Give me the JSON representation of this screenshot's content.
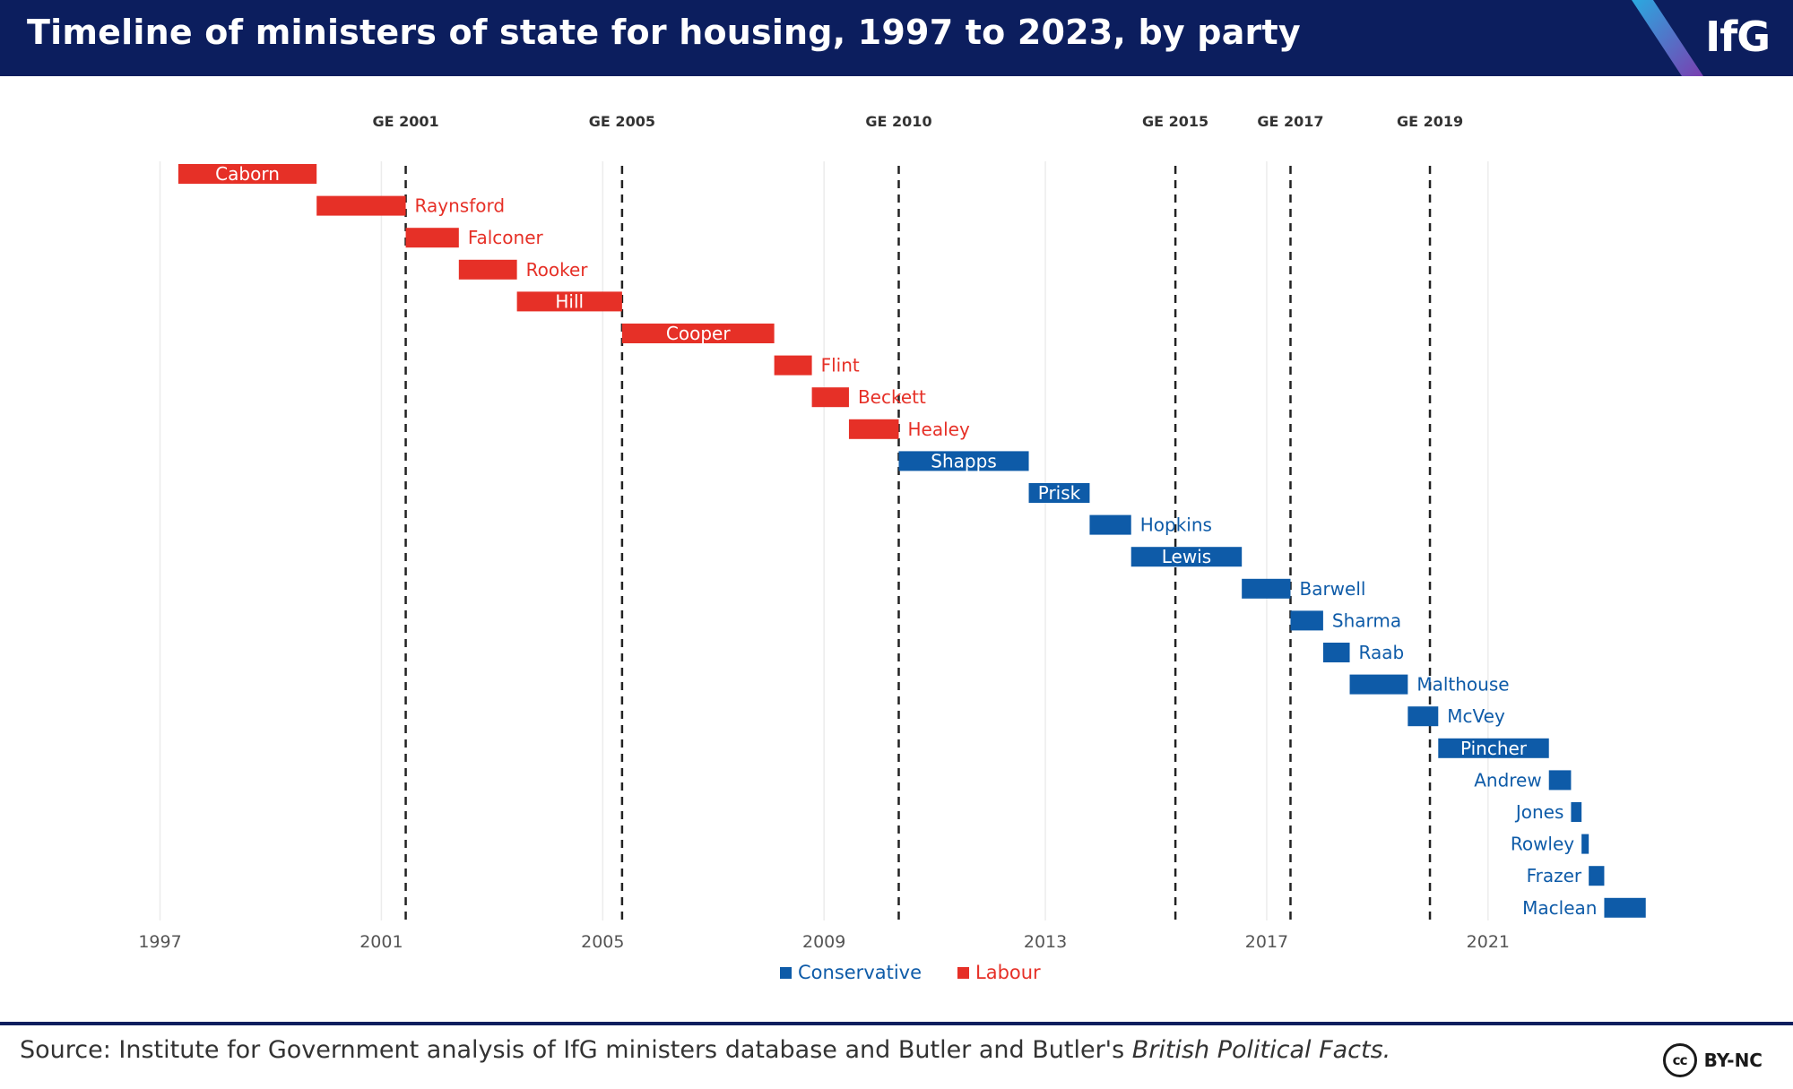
{
  "header": {
    "title": "Timeline of ministers of state for housing, 1997 to 2023, by party",
    "logo": "IfG"
  },
  "footer": {
    "source_prefix": "Source: Institute for Government analysis of IfG ministers database and Butler and Butler's ",
    "source_italic": "British Political Facts.",
    "license": "BY-NC",
    "license_icon": "cc-icon"
  },
  "colors": {
    "header_bg": "#0c1e5e",
    "labour": "#e63027",
    "conservative": "#0e5ba8"
  },
  "chart_data": {
    "type": "gantt",
    "title": "Timeline of ministers of state for housing, 1997 to 2023, by party",
    "x_range": [
      1996.7,
      2024.0
    ],
    "x_ticks": [
      "1997",
      "2001",
      "2005",
      "2009",
      "2013",
      "2017",
      "2021"
    ],
    "grid": "vertical, years 1997–2021 every 4 years",
    "legend_position": "bottom-center",
    "legend": [
      {
        "label": "Conservative",
        "party": "conservative"
      },
      {
        "label": "Labour",
        "party": "labour"
      }
    ],
    "elections": [
      {
        "label": "GE 2001",
        "date": 2001.44
      },
      {
        "label": "GE 2005",
        "date": 2005.35
      },
      {
        "label": "GE 2010",
        "date": 2010.35
      },
      {
        "label": "GE 2015",
        "date": 2015.35
      },
      {
        "label": "GE 2017",
        "date": 2017.43
      },
      {
        "label": "GE 2019",
        "date": 2019.95
      }
    ],
    "ministers": [
      {
        "name": "Caborn",
        "party": "labour",
        "start": 1997.33,
        "end": 1999.83,
        "label": "inside"
      },
      {
        "name": "Raynsford",
        "party": "labour",
        "start": 1999.83,
        "end": 2001.44,
        "label": "right"
      },
      {
        "name": "Falconer",
        "party": "labour",
        "start": 2001.44,
        "end": 2002.4,
        "label": "right"
      },
      {
        "name": "Rooker",
        "party": "labour",
        "start": 2002.4,
        "end": 2003.45,
        "label": "right"
      },
      {
        "name": "Hill",
        "party": "labour",
        "start": 2003.45,
        "end": 2005.35,
        "label": "inside"
      },
      {
        "name": "Cooper",
        "party": "labour",
        "start": 2005.35,
        "end": 2008.1,
        "label": "inside"
      },
      {
        "name": "Flint",
        "party": "labour",
        "start": 2008.1,
        "end": 2008.78,
        "label": "right"
      },
      {
        "name": "Beckett",
        "party": "labour",
        "start": 2008.78,
        "end": 2009.45,
        "label": "right"
      },
      {
        "name": "Healey",
        "party": "labour",
        "start": 2009.45,
        "end": 2010.35,
        "label": "right"
      },
      {
        "name": "Shapps",
        "party": "conservative",
        "start": 2010.35,
        "end": 2012.7,
        "label": "inside"
      },
      {
        "name": "Prisk",
        "party": "conservative",
        "start": 2012.7,
        "end": 2013.8,
        "label": "inside"
      },
      {
        "name": "Hopkins",
        "party": "conservative",
        "start": 2013.8,
        "end": 2014.55,
        "label": "right"
      },
      {
        "name": "Lewis",
        "party": "conservative",
        "start": 2014.55,
        "end": 2016.55,
        "label": "inside"
      },
      {
        "name": "Barwell",
        "party": "conservative",
        "start": 2016.55,
        "end": 2017.43,
        "label": "right"
      },
      {
        "name": "Sharma",
        "party": "conservative",
        "start": 2017.43,
        "end": 2018.02,
        "label": "right"
      },
      {
        "name": "Raab",
        "party": "conservative",
        "start": 2018.02,
        "end": 2018.5,
        "label": "right"
      },
      {
        "name": "Malthouse",
        "party": "conservative",
        "start": 2018.5,
        "end": 2019.55,
        "label": "right"
      },
      {
        "name": "McVey",
        "party": "conservative",
        "start": 2019.55,
        "end": 2020.1,
        "label": "right"
      },
      {
        "name": "Pincher",
        "party": "conservative",
        "start": 2020.1,
        "end": 2022.1,
        "label": "inside"
      },
      {
        "name": "Andrew",
        "party": "conservative",
        "start": 2022.1,
        "end": 2022.5,
        "label": "left"
      },
      {
        "name": "Jones",
        "party": "conservative",
        "start": 2022.5,
        "end": 2022.69,
        "label": "left"
      },
      {
        "name": "Rowley",
        "party": "conservative",
        "start": 2022.69,
        "end": 2022.82,
        "label": "left"
      },
      {
        "name": "Frazer",
        "party": "conservative",
        "start": 2022.82,
        "end": 2023.1,
        "label": "left"
      },
      {
        "name": "Maclean",
        "party": "conservative",
        "start": 2023.1,
        "end": 2023.85,
        "label": "left"
      }
    ]
  }
}
